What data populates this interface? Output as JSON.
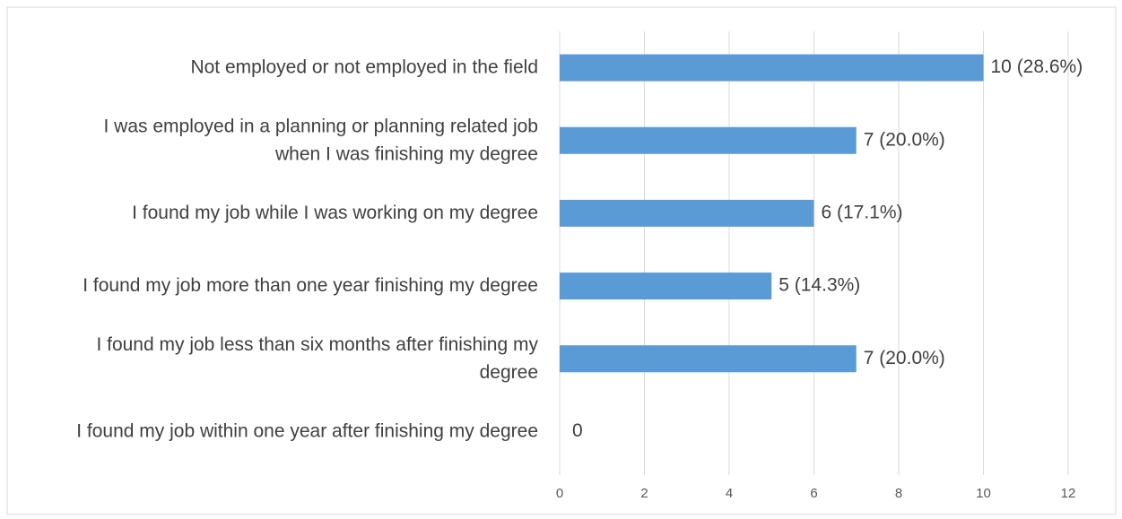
{
  "chart_data": {
    "type": "barh",
    "categories": [
      "Not employed or not employed in the field",
      "I was employed in a planning or planning related job when I was finishing my degree",
      "I found my job while I was working on my degree",
      "I found my job more than one year finishing my degree",
      "I found my job less than six months after finishing my degree",
      "I found my job within one year after finishing my degree"
    ],
    "values": [
      10,
      7,
      6,
      5,
      7,
      0
    ],
    "value_labels": [
      "10 (28.6%)",
      "7 (20.0%)",
      "6 (17.1%)",
      "5 (14.3%)",
      "7 (20.0%)",
      "0"
    ],
    "color": "#5b9bd5",
    "xlim": [
      0,
      12
    ],
    "xticks": [
      0,
      2,
      4,
      6,
      8,
      10,
      12
    ],
    "grid": true
  }
}
